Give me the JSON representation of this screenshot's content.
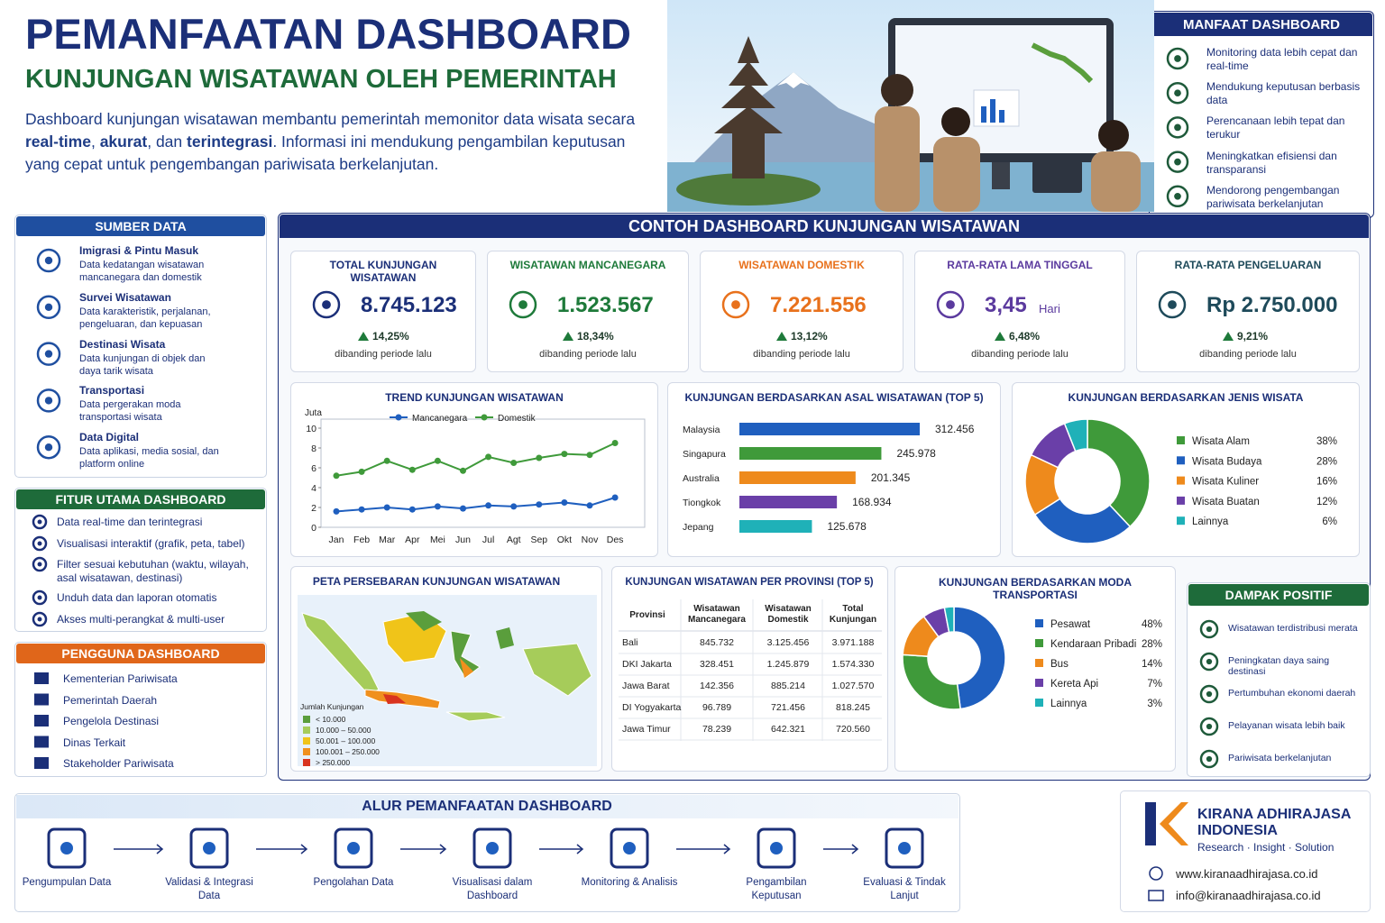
{
  "header": {
    "title": "PEMANFAATAN DASHBOARD",
    "subtitle": "KUNJUNGAN WISATAWAN OLEH PEMERINTAH",
    "description": [
      {
        "text": "Dashboard kunjungan wisatawan membantu pemerintah memonitor data wisata secara ",
        "bold": false
      },
      {
        "text": "real-time",
        "bold": true
      },
      {
        "text": ", ",
        "bold": false
      },
      {
        "text": "akurat",
        "bold": true
      },
      {
        "text": ", dan ",
        "bold": false
      },
      {
        "text": "terintegrasi",
        "bold": true
      },
      {
        "text": ". Informasi ini mendukung pengambilan keputusan yang cepat untuk pengembangan pariwisata berkelanjutan.",
        "bold": false
      }
    ]
  },
  "manfaat": {
    "title": "MANFAAT DASHBOARD",
    "items": [
      "Monitoring data lebih cepat dan real-time",
      "Mendukung keputusan berbasis data",
      "Perencanaan lebih tepat dan terukur",
      "Meningkatkan efisiensi dan transparansi",
      "Mendorong pengembangan pariwisata berkelanjutan"
    ]
  },
  "sumber_data": {
    "title": "SUMBER DATA",
    "items": [
      {
        "title": "Imigrasi & Pintu Masuk",
        "desc": "Data kedatangan wisatawan mancanegara dan domestik"
      },
      {
        "title": "Survei Wisatawan",
        "desc": "Data karakteristik, perjalanan, pengeluaran, dan kepuasan"
      },
      {
        "title": "Destinasi Wisata",
        "desc": "Data kunjungan di objek dan daya tarik wisata"
      },
      {
        "title": "Transportasi",
        "desc": "Data pergerakan moda transportasi wisata"
      },
      {
        "title": "Data Digital",
        "desc": "Data aplikasi, media sosial, dan platform online"
      }
    ]
  },
  "fitur": {
    "title": "FITUR UTAMA DASHBOARD",
    "items": [
      "Data real-time dan terintegrasi",
      "Visualisasi interaktif (grafik, peta, tabel)",
      "Filter sesuai kebutuhan (waktu, wilayah, asal wisatawan, destinasi)",
      "Unduh data dan laporan otomatis",
      "Akses multi-perangkat & multi-user"
    ]
  },
  "pengguna": {
    "title": "PENGGUNA DASHBOARD",
    "items": [
      "Kementerian Pariwisata",
      "Pemerintah Daerah",
      "Pengelola Destinasi",
      "Dinas Terkait",
      "Stakeholder Pariwisata"
    ]
  },
  "dashboard": {
    "title": "CONTOH DASHBOARD KUNJUNGAN WISATAWAN",
    "kpis": [
      {
        "label": "TOTAL KUNJUNGAN WISATAWAN",
        "value": "8.745.123",
        "change": "14,25%",
        "note": "dibanding periode lalu",
        "color": "#1b2f78"
      },
      {
        "label": "WISATAWAN MANCANEGARA",
        "value": "1.523.567",
        "change": "18,34%",
        "note": "dibanding periode lalu",
        "color": "#1e7a3a"
      },
      {
        "label": "WISATAWAN DOMESTIK",
        "value": "7.221.556",
        "change": "13,12%",
        "note": "dibanding periode lalu",
        "color": "#e8711c"
      },
      {
        "label": "RATA-RATA LAMA TINGGAL",
        "value": "3,45",
        "unit": "Hari",
        "change": "6,48%",
        "note": "dibanding periode lalu",
        "color": "#5b3a9e"
      },
      {
        "label": "RATA-RATA PENGELUARAN",
        "value": "Rp 2.750.000",
        "change": "9,21%",
        "note": "dibanding periode lalu",
        "color": "#1e4a5a"
      }
    ]
  },
  "map": {
    "title": "PETA PERSEBARAN KUNJUNGAN WISATAWAN",
    "legend_title": "Jumlah Kunjungan",
    "legend": [
      {
        "label": "< 10.000",
        "color": "#5a9e3c"
      },
      {
        "label": "10.000 – 50.000",
        "color": "#a6cc5a"
      },
      {
        "label": "50.001 – 100.000",
        "color": "#f0c419"
      },
      {
        "label": "100.001 – 250.000",
        "color": "#f0901e"
      },
      {
        "label": "> 250.000",
        "color": "#d9341f"
      }
    ]
  },
  "table": {
    "title": "KUNJUNGAN WISATAWAN PER PROVINSI (TOP 5)",
    "header": [
      "Provinsi",
      "Wisatawan Mancanegara",
      "Wisatawan Domestik",
      "Total Kunjungan"
    ],
    "rows": [
      [
        "Bali",
        "845.732",
        "3.125.456",
        "3.971.188"
      ],
      [
        "DKI Jakarta",
        "328.451",
        "1.245.879",
        "1.574.330"
      ],
      [
        "Jawa Barat",
        "142.356",
        "885.214",
        "1.027.570"
      ],
      [
        "DI Yogyakarta",
        "96.789",
        "721.456",
        "818.245"
      ],
      [
        "Jawa Timur",
        "78.239",
        "642.321",
        "720.560"
      ]
    ]
  },
  "dampak": {
    "title": "DAMPAK POSITIF",
    "items": [
      "Wisatawan terdistribusi merata",
      "Peningkatan daya saing destinasi",
      "Pertumbuhan ekonomi daerah",
      "Pelayanan wisata lebih baik",
      "Pariwisata berkelanjutan"
    ]
  },
  "alur": {
    "title": "ALUR PEMANFAATAN DASHBOARD",
    "steps": [
      "Pengumpulan Data",
      "Validasi & Integrasi Data",
      "Pengolahan Data",
      "Visualisasi dalam Dashboard",
      "Monitoring & Analisis",
      "Pengambilan Keputusan",
      "Evaluasi & Tindak Lanjut"
    ]
  },
  "company": {
    "name": "KIRANA ADHIRAJASA INDONESIA",
    "tagline": "Research · Insight · Solution",
    "website": "www.kiranaadhirajasa.co.id",
    "email": "info@kiranaadhirajasa.co.id"
  },
  "chart_data": [
    {
      "type": "line",
      "title": "TREND KUNJUNGAN WISATAWAN",
      "y_label": "Juta",
      "categories": [
        "Jan",
        "Feb",
        "Mar",
        "Apr",
        "Mei",
        "Jun",
        "Jul",
        "Agt",
        "Sep",
        "Okt",
        "Nov",
        "Des"
      ],
      "series": [
        {
          "name": "Mancanegara",
          "color": "#1f5fbf",
          "values": [
            1.6,
            1.8,
            2.0,
            1.8,
            2.1,
            1.9,
            2.2,
            2.1,
            2.3,
            2.5,
            2.2,
            3.0
          ]
        },
        {
          "name": "Domestik",
          "color": "#3f9a3a",
          "values": [
            5.2,
            5.6,
            6.7,
            5.8,
            6.7,
            5.7,
            7.1,
            6.5,
            7.0,
            7.4,
            7.3,
            8.5
          ]
        }
      ],
      "ylim": [
        0,
        10
      ],
      "yticks": [
        0,
        2,
        4,
        6,
        8,
        10
      ],
      "grid": false
    },
    {
      "type": "bar",
      "title": "KUNJUNGAN BERDASARKAN ASAL WISATAWAN (TOP 5)",
      "categories": [
        "Malaysia",
        "Singapura",
        "Australia",
        "Tiongkok",
        "Jepang"
      ],
      "values": [
        312456,
        245978,
        201345,
        168934,
        125678
      ],
      "value_labels": [
        "312.456",
        "245.978",
        "201.345",
        "168.934",
        "125.678"
      ],
      "colors": [
        "#1f5fbf",
        "#3f9a3a",
        "#ee8a1c",
        "#6a3fa8",
        "#1fb1b8"
      ]
    },
    {
      "type": "pie",
      "title": "KUNJUNGAN BERDASARKAN JENIS WISATA",
      "categories": [
        "Wisata Alam",
        "Wisata Budaya",
        "Wisata Kuliner",
        "Wisata Buatan",
        "Lainnya"
      ],
      "values": [
        38,
        28,
        16,
        12,
        6
      ],
      "value_labels": [
        "38%",
        "28%",
        "16%",
        "12%",
        "6%"
      ],
      "colors": [
        "#3f9a3a",
        "#1f5fbf",
        "#ee8a1c",
        "#6a3fa8",
        "#1fb1b8"
      ]
    },
    {
      "type": "pie",
      "title": "KUNJUNGAN BERDASARKAN MODA TRANSPORTASI",
      "categories": [
        "Pesawat",
        "Kendaraan Pribadi",
        "Bus",
        "Kereta Api",
        "Lainnya"
      ],
      "values": [
        48,
        28,
        14,
        7,
        3
      ],
      "value_labels": [
        "48%",
        "28%",
        "14%",
        "7%",
        "3%"
      ],
      "colors": [
        "#1f5fbf",
        "#3f9a3a",
        "#ee8a1c",
        "#6a3fa8",
        "#1fb1b8"
      ]
    }
  ]
}
